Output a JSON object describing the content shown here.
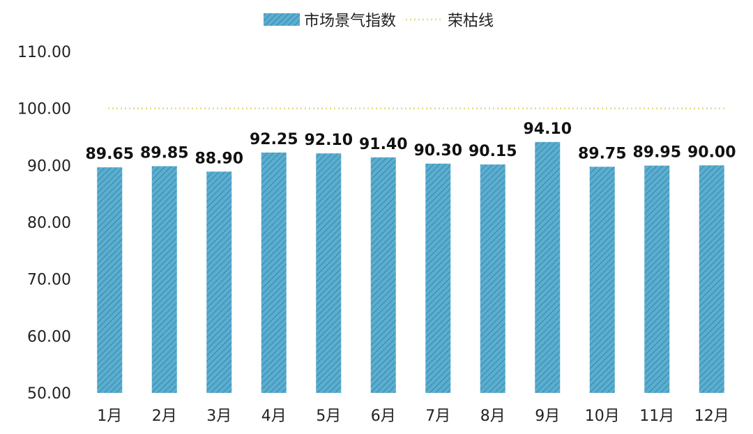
{
  "legend": {
    "bar_label": "市场景气指数",
    "line_label": "荣枯线"
  },
  "chart_data": {
    "type": "bar",
    "categories": [
      "1月",
      "2月",
      "3月",
      "4月",
      "5月",
      "6月",
      "7月",
      "8月",
      "9月",
      "10月",
      "11月",
      "12月"
    ],
    "series": [
      {
        "name": "市场景气指数",
        "values": [
          89.65,
          89.85,
          88.9,
          92.25,
          92.1,
          91.4,
          90.3,
          90.15,
          94.1,
          89.75,
          89.95,
          90.0
        ],
        "data_labels": [
          "89.65",
          "89.85",
          "88.90",
          "92.25",
          "92.10",
          "91.40",
          "90.30",
          "90.15",
          "94.10",
          "89.75",
          "89.95",
          "90.00"
        ],
        "color": "#5aaed0",
        "pattern": "diagonal-hatch"
      }
    ],
    "reference_line": {
      "name": "荣枯线",
      "value": 100,
      "style": "dotted",
      "color": "#e8e08a"
    },
    "yticks": [
      "50.00",
      "60.00",
      "70.00",
      "80.00",
      "90.00",
      "100.00",
      "110.00"
    ],
    "ylim": [
      50,
      110
    ],
    "grid": false,
    "legend_position": "top-center",
    "title": "",
    "xlabel": "",
    "ylabel": ""
  }
}
